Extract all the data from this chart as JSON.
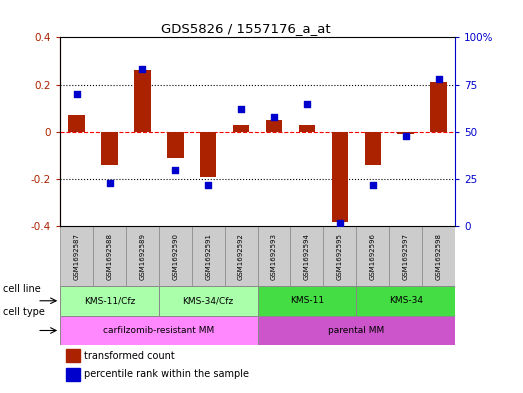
{
  "title": "GDS5826 / 1557176_a_at",
  "samples": [
    "GSM1692587",
    "GSM1692588",
    "GSM1692589",
    "GSM1692590",
    "GSM1692591",
    "GSM1692592",
    "GSM1692593",
    "GSM1692594",
    "GSM1692595",
    "GSM1692596",
    "GSM1692597",
    "GSM1692598"
  ],
  "transformed_count": [
    0.07,
    -0.14,
    0.26,
    -0.11,
    -0.19,
    0.03,
    0.05,
    0.03,
    -0.38,
    -0.14,
    -0.01,
    0.21
  ],
  "percentile_rank": [
    70,
    23,
    83,
    30,
    22,
    62,
    58,
    65,
    2,
    22,
    48,
    78
  ],
  "cell_line_groups": [
    {
      "label": "KMS-11/Cfz",
      "start": 0,
      "end": 3,
      "color": "#aaffaa"
    },
    {
      "label": "KMS-34/Cfz",
      "start": 3,
      "end": 6,
      "color": "#aaffaa"
    },
    {
      "label": "KMS-11",
      "start": 6,
      "end": 9,
      "color": "#44dd44"
    },
    {
      "label": "KMS-34",
      "start": 9,
      "end": 12,
      "color": "#44dd44"
    }
  ],
  "cell_type_groups": [
    {
      "label": "carfilzomib-resistant MM",
      "start": 0,
      "end": 6,
      "color": "#ff88ff"
    },
    {
      "label": "parental MM",
      "start": 6,
      "end": 12,
      "color": "#cc55cc"
    }
  ],
  "bar_color": "#aa2200",
  "dot_color": "#0000cc",
  "ylim_left": [
    -0.4,
    0.4
  ],
  "ylim_right": [
    0,
    100
  ],
  "yticks_left": [
    -0.4,
    -0.2,
    0.0,
    0.2,
    0.4
  ],
  "yticks_right": [
    0,
    25,
    50,
    75,
    100
  ],
  "ytick_right_labels": [
    "0",
    "25",
    "50",
    "75",
    "100%"
  ],
  "legend_items": [
    {
      "label": "transformed count",
      "color": "#aa2200"
    },
    {
      "label": "percentile rank within the sample",
      "color": "#0000cc"
    }
  ],
  "sample_box_color": "#cccccc",
  "bg_color": "#ffffff"
}
